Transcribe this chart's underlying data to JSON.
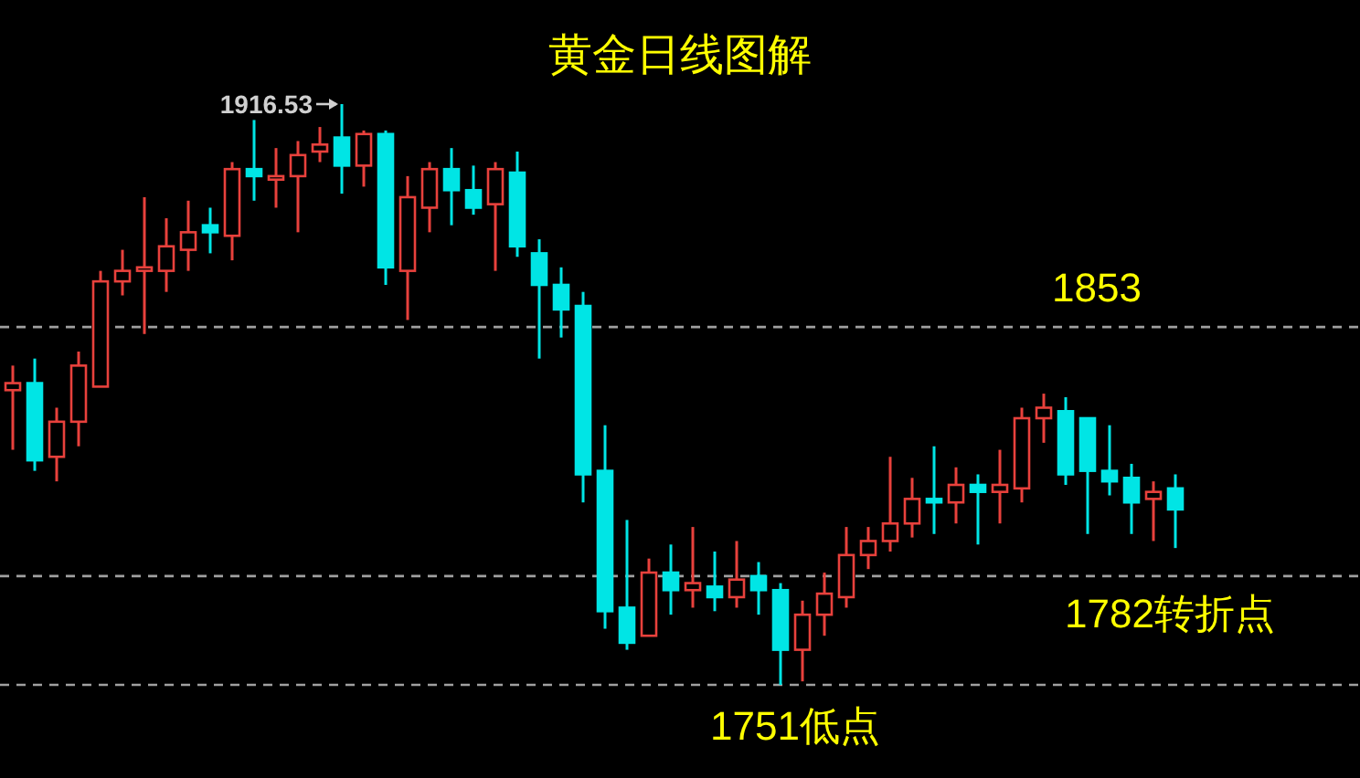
{
  "chart_data": {
    "type": "candlestick",
    "title": "黄金日线图解",
    "categories": [
      null,
      null,
      null,
      null,
      null,
      null,
      null,
      null,
      null,
      null,
      null,
      null,
      null,
      null,
      null,
      null,
      null,
      null,
      null,
      null,
      null,
      null,
      null,
      null,
      null,
      null,
      null,
      null,
      null,
      null,
      null,
      null,
      null,
      null,
      null,
      null,
      null,
      null,
      null,
      null,
      null,
      null,
      null,
      null,
      null,
      null,
      null,
      null,
      null,
      null,
      null,
      null,
      null,
      null
    ],
    "ohlc": [
      [
        1835,
        1842,
        1818,
        1837
      ],
      [
        1837,
        1844,
        1812,
        1815
      ],
      [
        1816,
        1830,
        1809,
        1826
      ],
      [
        1826,
        1846,
        1819,
        1842
      ],
      [
        1836,
        1869,
        1836,
        1866
      ],
      [
        1866,
        1875,
        1862,
        1869
      ],
      [
        1869,
        1890,
        1851,
        1870
      ],
      [
        1869,
        1884,
        1863,
        1876
      ],
      [
        1875,
        1889,
        1869,
        1880
      ],
      [
        1882,
        1887,
        1874,
        1880
      ],
      [
        1879,
        1900,
        1872,
        1898
      ],
      [
        1898,
        1912,
        1889,
        1896
      ],
      [
        1895,
        1904,
        1887,
        1896
      ],
      [
        1896,
        1906,
        1880,
        1902
      ],
      [
        1903,
        1910,
        1900,
        1905
      ],
      [
        1907,
        1916.53,
        1891,
        1899
      ],
      [
        1899,
        1909,
        1893,
        1908
      ],
      [
        1908,
        1909,
        1865,
        1870
      ],
      [
        1869,
        1896,
        1855,
        1890
      ],
      [
        1887,
        1900,
        1880,
        1898
      ],
      [
        1898,
        1904,
        1882,
        1892
      ],
      [
        1892,
        1899,
        1885,
        1887
      ],
      [
        1888,
        1900,
        1869,
        1898
      ],
      [
        1897,
        1903,
        1873,
        1876
      ],
      [
        1874,
        1878,
        1844,
        1865
      ],
      [
        1865,
        1870,
        1850,
        1858
      ],
      [
        1859,
        1863,
        1803,
        1811
      ],
      [
        1812,
        1825,
        1767,
        1772
      ],
      [
        1773,
        1798,
        1761,
        1763
      ],
      [
        1765,
        1787,
        1765,
        1783
      ],
      [
        1783,
        1791,
        1771,
        1778
      ],
      [
        1778,
        1796,
        1773,
        1780
      ],
      [
        1779,
        1789,
        1772,
        1776
      ],
      [
        1776,
        1792,
        1773,
        1781
      ],
      [
        1782,
        1786,
        1771,
        1778
      ],
      [
        1778,
        1780,
        1751,
        1761
      ],
      [
        1761,
        1775,
        1752,
        1771
      ],
      [
        1771,
        1783,
        1765,
        1777
      ],
      [
        1776,
        1796,
        1773,
        1788
      ],
      [
        1788,
        1796,
        1784,
        1792
      ],
      [
        1792,
        1816,
        1789,
        1797
      ],
      [
        1797,
        1810,
        1793,
        1804
      ],
      [
        1804,
        1819,
        1794,
        1803
      ],
      [
        1803,
        1813,
        1797,
        1808
      ],
      [
        1808,
        1811,
        1791,
        1806
      ],
      [
        1806,
        1818,
        1797,
        1808
      ],
      [
        1807,
        1830,
        1803,
        1827
      ],
      [
        1827,
        1834,
        1820,
        1830
      ],
      [
        1829,
        1833,
        1808,
        1811
      ],
      [
        1827,
        1827,
        1794,
        1812
      ],
      [
        1812,
        1825,
        1805,
        1809
      ],
      [
        1810,
        1814,
        1794,
        1803
      ],
      [
        1804,
        1809,
        1792,
        1806
      ],
      [
        1807,
        1811,
        1790,
        1801
      ]
    ],
    "colors": [
      "#e8413c",
      "#00e5e5",
      "#e8413c",
      "#e8413c",
      "#e8413c",
      "#e8413c",
      "#e8413c",
      "#e8413c",
      "#e8413c",
      "#00e5e5",
      "#e8413c",
      "#00e5e5",
      "#e8413c",
      "#e8413c",
      "#e8413c",
      "#00e5e5",
      "#e8413c",
      "#00e5e5",
      "#e8413c",
      "#e8413c",
      "#00e5e5",
      "#00e5e5",
      "#e8413c",
      "#00e5e5",
      "#00e5e5",
      "#00e5e5",
      "#00e5e5",
      "#00e5e5",
      "#00e5e5",
      "#e8413c",
      "#00e5e5",
      "#e8413c",
      "#00e5e5",
      "#e8413c",
      "#00e5e5",
      "#00e5e5",
      "#e8413c",
      "#e8413c",
      "#e8413c",
      "#e8413c",
      "#e8413c",
      "#e8413c",
      "#00e5e5",
      "#e8413c",
      "#00e5e5",
      "#e8413c",
      "#e8413c",
      "#e8413c",
      "#00e5e5",
      "#00e5e5",
      "#00e5e5",
      "#00e5e5",
      "#e8413c",
      "#00e5e5"
    ],
    "ref_lines": [
      {
        "axis": "y",
        "value": 1853,
        "label": "1853",
        "color": "#a0a0a0",
        "line_style": "dashed"
      },
      {
        "axis": "y",
        "value": 1782,
        "label": "1782转折点",
        "color": "#a0a0a0",
        "line_style": "dashed"
      },
      {
        "axis": "y",
        "value": 1751,
        "label": "1751低点",
        "color": "#a0a0a0",
        "line_style": "dashed"
      }
    ],
    "annotations": [
      "1916.53"
    ]
  }
}
